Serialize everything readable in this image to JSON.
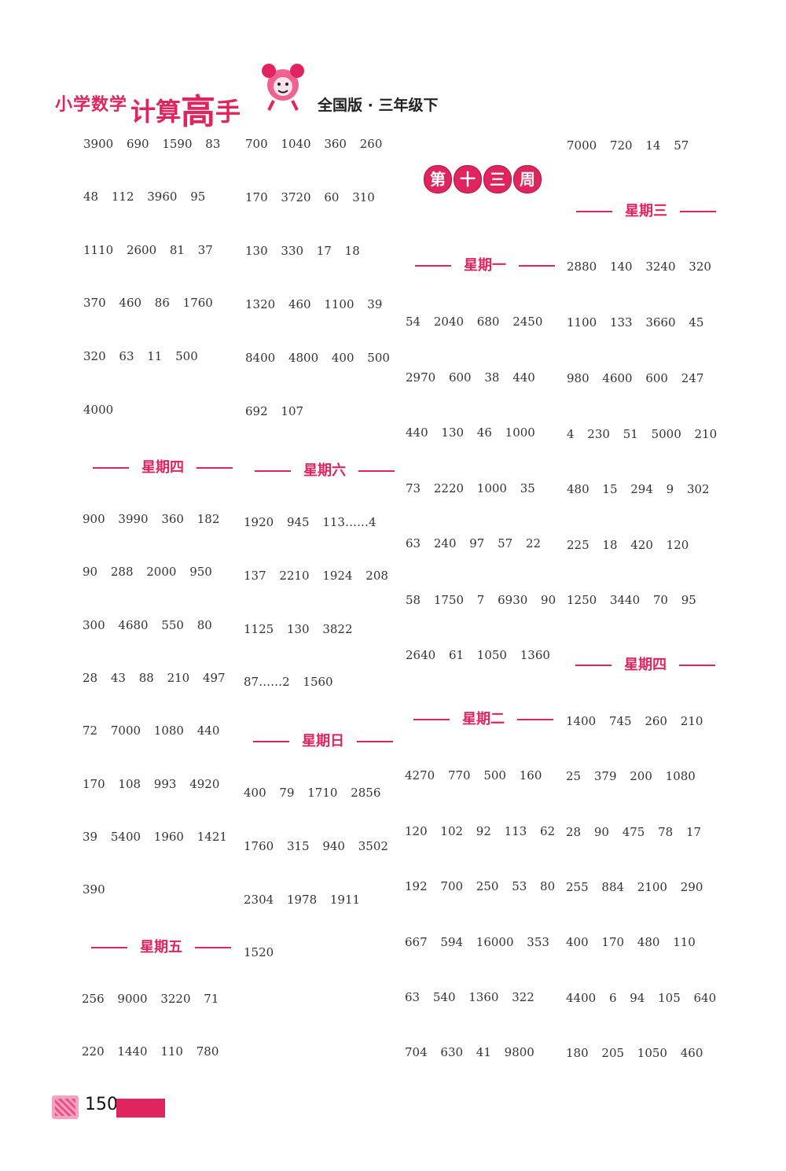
{
  "header": {
    "series_small": "小学数学",
    "series_big_1": "计算",
    "series_big_2": "高",
    "series_big_3": "手",
    "edition": "全国版 · 三年级下"
  },
  "week_badge": [
    "第",
    "十",
    "三",
    "周"
  ],
  "col1": {
    "rows": [
      "3900 690 1590 83",
      "48 112 3960 95",
      "1110 2600 81 37",
      "370 460 86 1760",
      "320 63 11 500",
      "4000"
    ],
    "day4": "星期四",
    "day4_rows": [
      "900 3990 360 182",
      "90 288 2000 950",
      "300 4680 550 80",
      "28 43 88 210 497",
      "72 7000 1080 440",
      "170 108 993 4920",
      "39 5400 1960 1421",
      "390"
    ],
    "day5": "星期五",
    "day5_rows": [
      "256 9000 3220 71",
      "220 1440 110 780"
    ]
  },
  "col2": {
    "rows": [
      "700 1040 360 260",
      "170 3720 60 310",
      "130 330 17 18",
      "1320 460 1100 39",
      "8400 4800 400 500",
      "692 107"
    ],
    "day6": "星期六",
    "day6_rows": [
      "1920 945 113……4",
      "137 2210 1924 208",
      "1125 130 3822",
      "87……2 1560"
    ],
    "day7": "星期日",
    "day7_rows": [
      "400 79 1710 2856",
      "1760 315 940 3502",
      "2304 1978 1911",
      "1520"
    ]
  },
  "col3": {
    "day1": "星期一",
    "day1_rows": [
      "54 2040 680 2450",
      "2970 600 38 440",
      "440 130 46 1000",
      "73 2220 1000 35",
      "63 240 97 57 22",
      "58 1750 7 6930 90",
      "2640 61 1050 1360"
    ],
    "day2": "星期二",
    "day2_rows": [
      "4270 770 500 160",
      "120 102 92 113 62",
      "192 700 250 53 80",
      "667 594 16000 353",
      "63 540 1360 322",
      "704 630 41 9800"
    ]
  },
  "col4": {
    "rows": [
      "7000 720 14 57"
    ],
    "day3": "星期三",
    "day3_rows": [
      "2880 140 3240 320",
      "1100 133 3660 45",
      "980 4600 600 247",
      "4 230 51 5000 210",
      "480 15 294 9 302",
      "225 18 420 120",
      "1250 3440 70 95"
    ],
    "day4": "星期四",
    "day4_rows": [
      "1400 745 260 210",
      "25 379 200 1080",
      "28 90 475 78 17",
      "255 884 2100 290",
      "400 170 480 110",
      "4400 6 94 105 640",
      "180 205 1050 460"
    ]
  },
  "footer": {
    "page": "150"
  },
  "colors": {
    "accent": "#e0245e"
  }
}
